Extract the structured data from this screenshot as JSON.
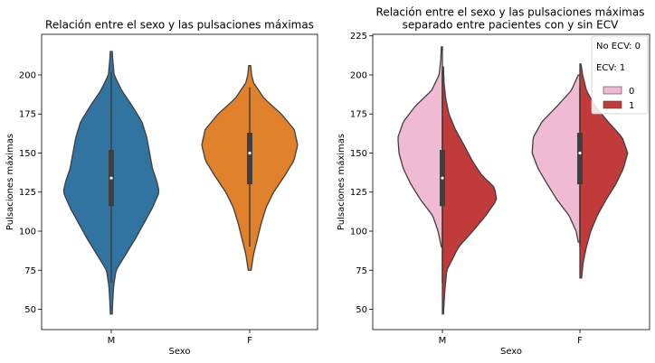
{
  "chart_data": [
    {
      "type": "violin",
      "title": "Relación entre el sexo y las pulsaciones máximas",
      "xlabel": "Sexo",
      "ylabel": "Pulsaciones máximas",
      "ylim": [
        37,
        226
      ],
      "yticks": [
        50,
        75,
        100,
        125,
        150,
        175,
        200
      ],
      "categories": [
        "M",
        "F"
      ],
      "colors": [
        "#3274a1",
        "#e1812c"
      ],
      "series": [
        {
          "category": "M",
          "min": 47,
          "max": 215,
          "box": {
            "q1": 116,
            "median": 134,
            "q3": 152
          },
          "whisker": [
            67,
            202
          ],
          "density_profile": [
            [
              47,
              0.02
            ],
            [
              55,
              0.03
            ],
            [
              65,
              0.05
            ],
            [
              75,
              0.1
            ],
            [
              85,
              0.3
            ],
            [
              95,
              0.5
            ],
            [
              105,
              0.68
            ],
            [
              115,
              0.86
            ],
            [
              125,
              1.0
            ],
            [
              132,
              0.95
            ],
            [
              140,
              0.86
            ],
            [
              150,
              0.8
            ],
            [
              160,
              0.74
            ],
            [
              170,
              0.64
            ],
            [
              180,
              0.44
            ],
            [
              190,
              0.22
            ],
            [
              200,
              0.06
            ],
            [
              210,
              0.03
            ],
            [
              215,
              0.02
            ]
          ]
        },
        {
          "category": "F",
          "min": 75,
          "max": 206,
          "box": {
            "q1": 130,
            "median": 150,
            "q3": 163
          },
          "whisker": [
            90,
            192
          ],
          "density_profile": [
            [
              75,
              0.03
            ],
            [
              85,
              0.08
            ],
            [
              95,
              0.16
            ],
            [
              105,
              0.24
            ],
            [
              115,
              0.34
            ],
            [
              125,
              0.5
            ],
            [
              135,
              0.72
            ],
            [
              145,
              0.92
            ],
            [
              155,
              1.0
            ],
            [
              165,
              0.93
            ],
            [
              175,
              0.66
            ],
            [
              185,
              0.3
            ],
            [
              195,
              0.08
            ],
            [
              200,
              0.04
            ],
            [
              206,
              0.02
            ]
          ]
        }
      ]
    },
    {
      "type": "split-violin",
      "title": "Relación entre el sexo y las pulsaciones máximas\nseparado entre pacientes con y sin ECV",
      "xlabel": "Sexo",
      "ylabel": "Pulsaciones máximas",
      "ylim": [
        37,
        226
      ],
      "yticks": [
        50,
        75,
        100,
        125,
        150,
        175,
        200,
        225
      ],
      "categories": [
        "M",
        "F"
      ],
      "legend": {
        "placement": "top-right",
        "notes": [
          "No ECV: 0",
          "ECV: 1"
        ],
        "entries": [
          {
            "label": "0",
            "color": "#f0bad2"
          },
          {
            "label": "1",
            "color": "#c23b3b"
          }
        ]
      },
      "series": [
        {
          "category": "M",
          "box": {
            "q1": 116,
            "median": 134,
            "q3": 152
          },
          "whisker": [
            67,
            202
          ],
          "left": {
            "label": "0",
            "min": 90,
            "max": 218,
            "density_profile": [
              [
                90,
                0.02
              ],
              [
                100,
                0.08
              ],
              [
                110,
                0.18
              ],
              [
                120,
                0.4
              ],
              [
                130,
                0.58
              ],
              [
                140,
                0.72
              ],
              [
                150,
                0.8
              ],
              [
                160,
                0.82
              ],
              [
                170,
                0.72
              ],
              [
                180,
                0.5
              ],
              [
                190,
                0.2
              ],
              [
                200,
                0.06
              ],
              [
                210,
                0.03
              ],
              [
                218,
                0.02
              ]
            ]
          },
          "right": {
            "label": "1",
            "min": 47,
            "max": 205,
            "density_profile": [
              [
                47,
                0.02
              ],
              [
                60,
                0.04
              ],
              [
                75,
                0.08
              ],
              [
                90,
                0.3
              ],
              [
                100,
                0.56
              ],
              [
                110,
                0.8
              ],
              [
                120,
                1.0
              ],
              [
                128,
                0.96
              ],
              [
                136,
                0.72
              ],
              [
                145,
                0.55
              ],
              [
                155,
                0.4
              ],
              [
                165,
                0.24
              ],
              [
                175,
                0.12
              ],
              [
                185,
                0.06
              ],
              [
                195,
                0.03
              ],
              [
                205,
                0.02
              ]
            ]
          }
        },
        {
          "category": "F",
          "box": {
            "q1": 130,
            "median": 150,
            "q3": 163
          },
          "whisker": [
            90,
            192
          ],
          "left": {
            "label": "0",
            "min": 93,
            "max": 200,
            "density_profile": [
              [
                93,
                0.03
              ],
              [
                100,
                0.07
              ],
              [
                110,
                0.2
              ],
              [
                120,
                0.42
              ],
              [
                130,
                0.6
              ],
              [
                140,
                0.77
              ],
              [
                150,
                0.88
              ],
              [
                160,
                0.86
              ],
              [
                170,
                0.7
              ],
              [
                180,
                0.42
              ],
              [
                190,
                0.16
              ],
              [
                200,
                0.03
              ]
            ]
          },
          "right": {
            "label": "1",
            "min": 70,
            "max": 207,
            "density_profile": [
              [
                70,
                0.03
              ],
              [
                80,
                0.06
              ],
              [
                90,
                0.12
              ],
              [
                100,
                0.2
              ],
              [
                110,
                0.32
              ],
              [
                120,
                0.48
              ],
              [
                130,
                0.66
              ],
              [
                140,
                0.8
              ],
              [
                150,
                0.88
              ],
              [
                160,
                0.78
              ],
              [
                170,
                0.52
              ],
              [
                180,
                0.28
              ],
              [
                190,
                0.12
              ],
              [
                200,
                0.05
              ],
              [
                207,
                0.02
              ]
            ]
          }
        }
      ]
    }
  ]
}
